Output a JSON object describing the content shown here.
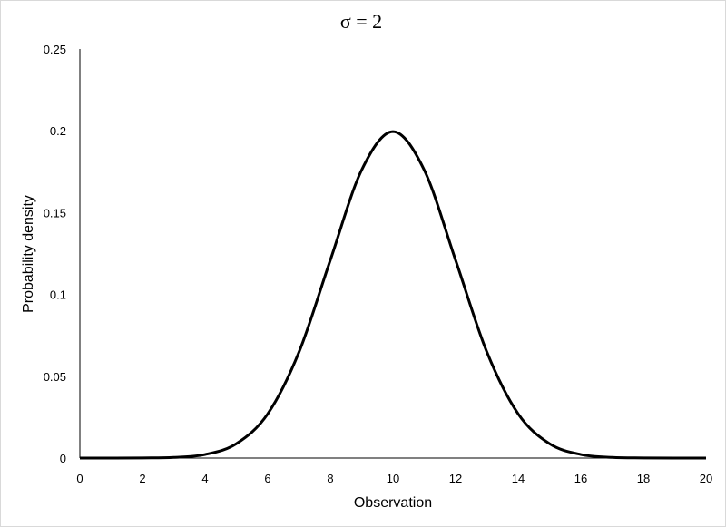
{
  "chart_data": {
    "type": "line",
    "title": "σ = 2",
    "xlabel": "Observation",
    "ylabel": "Probability density",
    "xlim": [
      0,
      20
    ],
    "ylim": [
      0,
      0.25
    ],
    "x_ticks": [
      0,
      2,
      4,
      6,
      8,
      10,
      12,
      14,
      16,
      18,
      20
    ],
    "y_ticks": [
      0,
      0.05,
      0.1,
      0.15,
      0.2,
      0.25
    ],
    "x_tick_labels": [
      "0",
      "2",
      "4",
      "6",
      "8",
      "10",
      "12",
      "14",
      "16",
      "18",
      "20"
    ],
    "y_tick_labels": [
      "0",
      "0.05",
      "0.1",
      "0.15",
      "0.2",
      "0.25"
    ],
    "grid": false,
    "legend": "none",
    "series": [
      {
        "color": "#000000",
        "x": [
          0,
          1,
          2,
          3,
          4,
          5,
          6,
          7,
          8,
          9,
          10,
          11,
          12,
          13,
          14,
          15,
          16,
          17,
          18,
          19,
          20
        ],
        "y": [
          0.0,
          0.0,
          0.0001,
          0.0004,
          0.0022,
          0.0088,
          0.027,
          0.0648,
          0.121,
          0.176,
          0.1995,
          0.176,
          0.121,
          0.0648,
          0.027,
          0.0088,
          0.0022,
          0.0004,
          0.0001,
          0.0,
          0.0
        ]
      }
    ]
  }
}
